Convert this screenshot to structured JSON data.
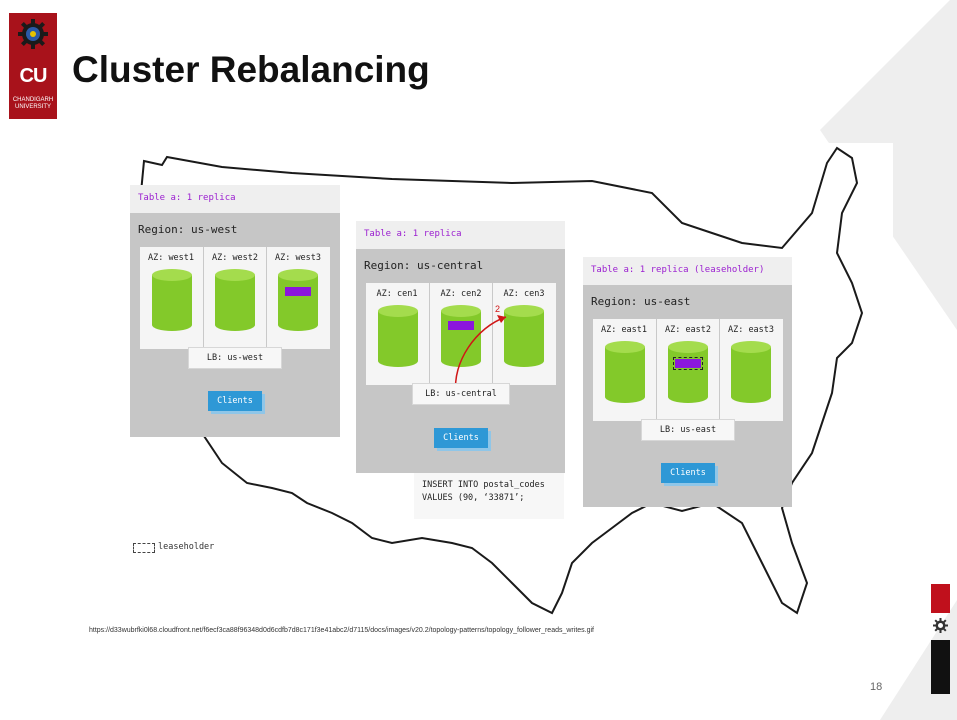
{
  "logo": {
    "initials": "CU",
    "name_line1": "CHANDIGARH",
    "name_line2": "UNIVERSITY"
  },
  "title": "Cluster Rebalancing",
  "regions": [
    {
      "table_label": "Table a: 1 replica",
      "name": "Region: us-west",
      "azs": [
        "AZ: west1",
        "AZ: west2",
        "AZ: west3"
      ],
      "lb": "LB: us-west",
      "clients": "Clients"
    },
    {
      "table_label": "Table a: 1 replica",
      "name": "Region: us-central",
      "azs": [
        "AZ: cen1",
        "AZ: cen2",
        "AZ: cen3"
      ],
      "lb": "LB: us-central",
      "clients": "Clients",
      "arrow_label": "2"
    },
    {
      "table_label": "Table a: 1 replica (leaseholder)",
      "name": "Region: us-east",
      "azs": [
        "AZ: east1",
        "AZ: east2",
        "AZ: east3"
      ],
      "lb": "LB: us-east",
      "clients": "Clients"
    }
  ],
  "sql": {
    "line1": "INSERT INTO postal_codes",
    "line2": "VALUES (90, ‘33871’;"
  },
  "legend": {
    "label": "leaseholder"
  },
  "colors": {
    "brand_red": "#a8121b",
    "replica_purple": "#8b16dc",
    "cylinder_green": "#83c92a",
    "clients_blue": "#2e98d6",
    "arrow_red": "#d01616"
  },
  "source_url": "https://d33wubrfki0l68.cloudfront.net/f6ecf3ca88f96348d0d6cdfb7d8c171f3e41abc2/d7115/docs/images/v20.2/topology-patterns/topology_follower_reads_writes.gif",
  "page_number": "18"
}
